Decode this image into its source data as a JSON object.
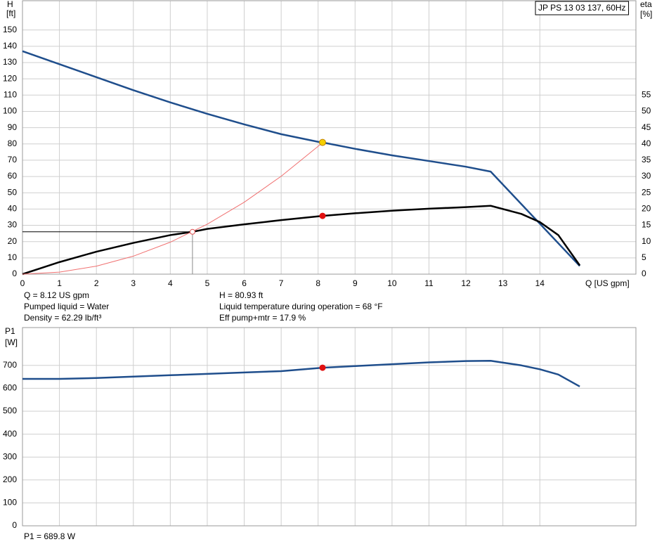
{
  "chart_data": [
    {
      "type": "line",
      "y_label": "H",
      "y_unit": "[ft]",
      "y2_label": "eta",
      "y2_unit": "[%]",
      "x_label": "Q [US gpm]",
      "legend": "JP PS 13 03 137, 60Hz",
      "xlim": [
        0,
        16.6
      ],
      "xticks": [
        0,
        1,
        2,
        3,
        4,
        5,
        6,
        7,
        8,
        9,
        10,
        11,
        12,
        13,
        14
      ],
      "ylim": [
        0,
        168
      ],
      "yticks": [
        0,
        10,
        20,
        30,
        40,
        50,
        60,
        70,
        80,
        90,
        100,
        110,
        120,
        130,
        140,
        150
      ],
      "y2lim": [
        0,
        84
      ],
      "y2ticks": [
        0,
        5,
        10,
        15,
        20,
        25,
        30,
        35,
        40,
        45,
        50,
        55
      ],
      "grid": true,
      "series": [
        {
          "color": "#1f4e8c",
          "width": 2.5,
          "axis": "y",
          "x": [
            0,
            1,
            2,
            3,
            4,
            5,
            6,
            7,
            8,
            8.12,
            9,
            10,
            11,
            12,
            12.67,
            15.08
          ],
          "values": [
            137,
            129,
            121,
            113,
            105.5,
            98.5,
            92,
            86,
            81.3,
            80.93,
            77,
            73,
            69.5,
            66,
            63,
            5
          ]
        },
        {
          "color": "#000000",
          "width": 2.5,
          "axis": "y2",
          "x": [
            0,
            1,
            2,
            3,
            4,
            4.6,
            5,
            6,
            7,
            8.12,
            9,
            10,
            11,
            12,
            12.67,
            13.5,
            14,
            14.5,
            15.08
          ],
          "values": [
            0,
            3.7,
            6.9,
            9.6,
            12,
            13,
            13.9,
            15.3,
            16.6,
            17.9,
            18.7,
            19.5,
            20.1,
            20.6,
            21,
            18.5,
            16,
            12,
            2.7
          ]
        },
        {
          "color": "#f07070",
          "width": 1,
          "axis": "y",
          "x": [
            0,
            1,
            2,
            3,
            4,
            5,
            6,
            7,
            8,
            8.12
          ],
          "values": [
            0,
            1.23,
            4.91,
            11.05,
            19.64,
            30.69,
            44.19,
            60.15,
            78.56,
            80.93
          ]
        }
      ],
      "markers": [
        {
          "x": 8.12,
          "y": 80.93,
          "axis": "y",
          "color": "#f5d000",
          "filled": true
        },
        {
          "x": 8.12,
          "y": 17.9,
          "axis": "y2",
          "color": "#e01010",
          "filled": true
        },
        {
          "x": 4.6,
          "y": 26,
          "axis": "y",
          "color": "#e05050",
          "filled": false,
          "guide": true
        }
      ]
    },
    {
      "type": "line",
      "y_label": "P1",
      "y_unit": "[W]",
      "xlim": [
        0,
        16.6
      ],
      "xticks": [
        0,
        1,
        2,
        3,
        4,
        5,
        6,
        7,
        8,
        9,
        10,
        11,
        12,
        13,
        14
      ],
      "ylim": [
        0,
        865
      ],
      "yticks": [
        0,
        100,
        200,
        300,
        400,
        500,
        600,
        700
      ],
      "grid": true,
      "series": [
        {
          "color": "#1f4e8c",
          "width": 2.5,
          "axis": "y",
          "x": [
            0,
            1,
            2,
            3,
            4,
            5,
            6,
            7,
            8.12,
            9,
            10,
            11,
            12,
            12.67,
            13.5,
            14,
            14.5,
            15.08
          ],
          "values": [
            641,
            641,
            645,
            651,
            657,
            663,
            669,
            675,
            689.8,
            697,
            705,
            713,
            719,
            720,
            700,
            683,
            660,
            608
          ]
        }
      ],
      "markers": [
        {
          "x": 8.12,
          "y": 689.8,
          "axis": "y",
          "color": "#e01010",
          "filled": true
        }
      ]
    }
  ],
  "info": {
    "left": [
      "Q = 8.12 US gpm",
      "Pumped liquid = Water",
      "Density = 62.29 lb/ft³"
    ],
    "right": [
      "H = 80.93 ft",
      "Liquid temperature during operation = 68 °F",
      "Eff pump+mtr = 17.9 %"
    ],
    "p1": "P1 = 689.8 W"
  }
}
